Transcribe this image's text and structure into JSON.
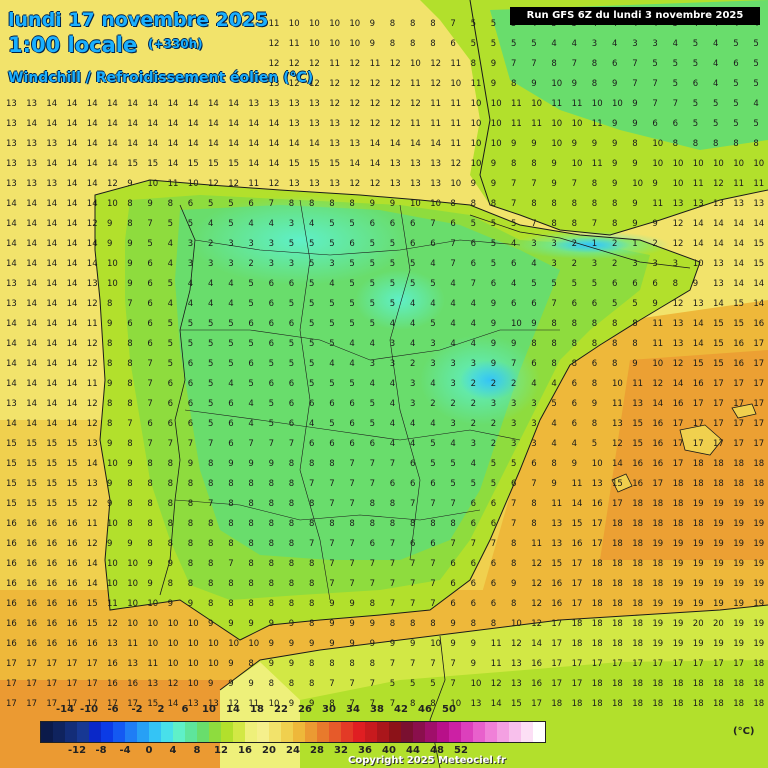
{
  "header": {
    "date": "lundi 17 novembre 2025",
    "time": "1:00 locale",
    "lead": "(+330h)",
    "parameter": "Windchill / Refroidissement éolien (°C)",
    "run": "Run GFS 6Z du lundi 3 novembre 2025"
  },
  "legend": {
    "unit": "(°C)",
    "top_ticks": [
      "-14",
      "-10",
      "-6",
      "-2",
      "2",
      "6",
      "10",
      "14",
      "18",
      "22",
      "26",
      "30",
      "34",
      "38",
      "42",
      "46",
      "50"
    ],
    "bottom_ticks": [
      "-12",
      "-8",
      "-4",
      "0",
      "4",
      "8",
      "12",
      "16",
      "20",
      "24",
      "28",
      "32",
      "36",
      "40",
      "44",
      "48",
      "52"
    ],
    "colors": [
      "#0b1a4a",
      "#0f235e",
      "#132d78",
      "#173893",
      "#0a28c8",
      "#0b3be6",
      "#1459f2",
      "#1f7df5",
      "#27a0f5",
      "#34c4f5",
      "#48e0ea",
      "#5ff0c8",
      "#5ee59c",
      "#69dd6c",
      "#8edc3e",
      "#b2e02c",
      "#d2e845",
      "#eef07a",
      "#f5f08c",
      "#f2e36b",
      "#f0d04e",
      "#eeb83a",
      "#eb9a32",
      "#e87a2c",
      "#e65a2a",
      "#e33a26",
      "#e01e22",
      "#c81a1e",
      "#aa161b",
      "#8c1218",
      "#7a1030",
      "#8a0f4c",
      "#a00f6a",
      "#b81089",
      "#cc20a4",
      "#dc40bc",
      "#e860cc",
      "#f080d8",
      "#f4a0e2",
      "#f8c0ec",
      "#fcdff5",
      "#ffffff"
    ]
  },
  "copyright": "Copyright 2025 Meteociel.fr",
  "map_data": {
    "grid_note": "model values",
    "rows": [
      "13 13 13 13 13 13 13 13 13 13 13 13 12 11 10 10 10 10 9 8 8 8 7 5 5 5 4 5 5 4 4 4 4 5 4 4 4 4",
      "12 13 13 13 13 13 13 13 13 13 13 13 12 12 11 10 10 10 9 8 8 8 6 5 5 5 5 4 4 3 4 3 3 4 5 4 5 5",
      "13 13 13 13 13 13 13 13 13 13 13 13 13 12 12 12 11 12 11 12 10 12 11 8 9 7 7 8 7 8 6 7 5 5 5 4 6 5",
      "13 13 13 14 14 14 14 14 14 14 14 14 13 13 12 12 12 12 12 12 11 12 10 11 9 8 9 10 9 8 9 7 7 5 6 4 5 5",
      "13 13 14 14 14 14 14 14 14 14 14 14 13 13 13 13 12 12 12 12 12 11 11 10 10 11 10 11 11 10 10 9 7 7 5 5 5 4",
      "13 14 14 14 14 14 14 14 14 14 14 14 14 14 13 13 13 12 12 12 11 11 11 10 10 11 11 10 10 11 9 9 6 6 5 5 5 5",
      "13 13 13 14 14 14 14 14 14 14 14 14 14 14 14 14 13 13 14 14 14 14 11 10 10 9 9 10 9 9 9 8 10 8 8 8 8 8",
      "13 13 14 14 14 14 15 15 14 15 15 15 14 14 15 15 15 14 14 13 13 13 12 10 9 8 8 9 10 11 9 9 10 10 10 10 10 10",
      "13 13 13 14 14 12 9 10 11 10 12 12 11 12 13 13 13 12 12 13 13 13 10 9 9 7 7 9 7 8 9 10 9 10 11 12 11 11",
      "14 14 14 14 14 10 8 9 8 6 5 5 6 7 8 8 8 8 9 9 10 10 8 8 8 7 8 8 8 8 8 9 11 13 13 13 13 13",
      "14 14 14 14 12 9 8 7 5 5 4 5 4 4 3 4 5 5 6 6 6 7 6 5 5 5 7 8 8 7 8 9 9 12 14 14 14 14",
      "14 14 14 14 14 9 9 5 4 3 2 3 3 3 5 5 5 6 5 5 6 6 7 6 5 4 3 3 2 1 2 1 2 12 14 14 14 15",
      "14 14 14 14 14 10 9 6 4 3 3 3 2 3 3 5 3 5 5 5 5 4 7 6 5 6 4 3 2 3 2 3 3 3 10 13 14 15",
      "13 14 14 14 13 10 9 6 5 4 4 4 5 6 6 5 4 5 5 5 5 5 4 7 6 4 5 5 5 5 6 6 6 8 9 13 14 14",
      "13 14 14 14 12 8 7 6 4 4 4 4 5 6 5 5 5 5 5 5 4 4 4 4 9 6 6 7 6 6 5 5 9 12 13 14 15 14",
      "14 14 14 14 11 9 6 6 5 5 5 5 6 6 6 5 5 5 5 4 4 5 4 4 9 10 9 8 8 8 8 8 11 13 14 15 15 16",
      "14 14 14 14 12 8 8 6 5 5 5 5 5 6 5 5 5 4 4 3 4 3 4 4 9 9 8 8 8 8 8 8 11 13 14 15 16 17",
      "14 14 14 14 12 8 8 7 5 6 5 5 6 5 5 5 4 4 3 3 2 3 3 3 9 7 6 8 8 6 8 9 10 12 15 15 16 17",
      "14 14 14 14 11 9 8 7 6 6 5 4 5 6 6 5 5 5 4 4 3 4 3 2 2 2 4 4 6 8 10 11 12 14 16 17 17 17",
      "13 14 14 14 12 8 8 7 6 6 5 6 4 5 6 6 6 6 5 4 3 2 2 2 3 3 3 5 6 9 11 13 14 16 17 17 17 17",
      "14 14 14 14 12 8 7 6 6 6 5 6 4 5 6 4 5 6 5 4 4 4 3 2 2 3 3 4 6 8 13 15 16 17 17 17 17 17",
      "15 15 15 15 13 9 8 7 7 7 7 6 7 7 7 6 6 6 6 4 4 5 4 3 2 3 3 4 4 5 12 15 16 17 17 17 17 17",
      "15 15 15 15 14 10 9 8 8 9 8 9 9 9 8 8 8 7 7 7 6 5 5 4 5 5 6 8 9 10 14 16 16 17 18 18 18 18",
      "15 15 15 15 13 9 8 8 8 8 8 8 8 8 8 7 7 7 7 6 6 6 5 5 5 6 7 9 11 13 15 16 17 18 18 18 18 18",
      "15 15 15 15 12 9 8 8 8 8 7 8 8 8 8 8 7 7 8 8 7 7 7 6 6 7 8 11 14 16 17 18 18 18 19 19 19 19",
      "16 16 16 16 11 10 8 8 8 8 8 8 8 8 8 8 8 8 8 8 8 8 8 6 6 7 8 13 15 17 18 18 18 18 18 19 19 19",
      "16 16 16 16 12 9 9 8 8 8 8 8 8 8 8 7 7 7 6 7 6 6 7 7 7 8 11 13 16 17 18 18 19 19 19 19 19 19",
      "16 16 16 16 14 10 10 9 9 8 8 7 8 8 8 8 7 7 7 7 7 7 6 6 6 8 12 15 17 18 18 18 18 19 19 19 19 19",
      "16 16 16 16 14 10 10 9 8 8 8 8 8 8 8 8 7 7 7 7 7 7 6 6 6 9 12 16 17 18 18 18 18 19 19 19 19 19",
      "16 16 16 16 15 11 10 10 9 9 8 8 8 8 8 8 9 9 8 7 7 7 6 6 6 8 12 16 17 18 18 18 19 19 19 19 19 19",
      "16 16 16 16 15 12 10 10 10 10 9 9 9 9 9 8 9 9 9 8 8 8 9 8 8 10 12 17 18 18 18 18 19 19 20 20 19 19",
      "16 16 16 16 16 13 11 10 10 10 10 10 10 9 9 9 9 9 9 9 9 10 9 9 11 12 14 17 18 18 18 18 19 19 19 19 19 19",
      "17 17 17 17 17 16 13 11 10 10 10 9 8 9 9 8 8 8 8 7 7 7 7 9 11 13 16 17 17 17 17 17 17 17 17 17 17 18",
      "17 17 17 17 17 16 16 13 12 10 9 9 9 8 8 8 7 7 7 5 5 5 7 10 12 13 16 17 17 18 18 18 18 18 18 18 18 18",
      "17 17 17 17 17 17 17 15 14 13 13 12 11 10 9 9 8 7 7 7 8 8 10 13 14 15 17 18 18 18 18 18 18 18 18 18 18 18",
      "17 17 17 17 17 17 17 17 16 16 15 15 14 12 12 12 12 11 11 12 13 14 15 16 17 17 18 18 18 18 18 18 18 18 18 18 18 18",
      "17 17 17 17 17 17 17 17 17 17 17 16 16 15 15 15 15 15 15 15 16 16 16 16 17 17 18 18 18 18 18 18 18 18 18 18 18 18",
      "17 17 17 17 17 17 17 17 17 17 17 17 17 16 16 16 16 16 16 16 16 16 16 16 17 17 18 18 18 18 18 18 18 18 18 18 18 18"
    ]
  }
}
